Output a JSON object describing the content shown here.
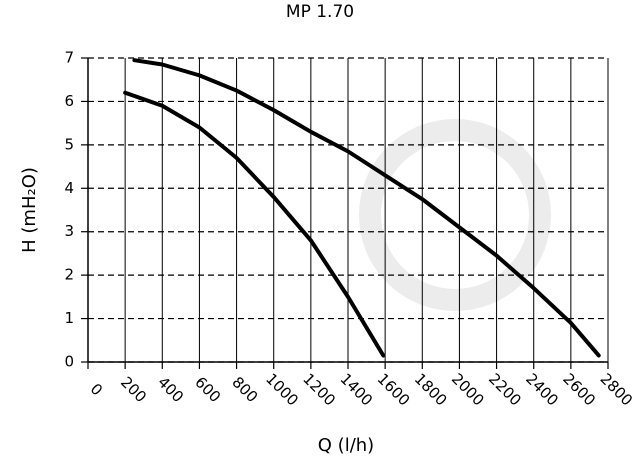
{
  "chart_data": {
    "type": "line",
    "title": "MP 1.70",
    "x_label": "Q (l/h)",
    "y_label": "H (mH₂O)",
    "series": [
      {
        "color": "#000000",
        "x": [
          200,
          400,
          600,
          800,
          1000,
          1200,
          1400,
          1590
        ],
        "values": [
          6.2,
          5.9,
          5.4,
          4.7,
          3.8,
          2.8,
          1.5,
          0.15
        ]
      },
      {
        "color": "#000000",
        "x": [
          250,
          400,
          600,
          800,
          1000,
          1200,
          1400,
          1600,
          1800,
          2000,
          2200,
          2400,
          2600,
          2750
        ],
        "values": [
          6.95,
          6.85,
          6.6,
          6.25,
          5.8,
          5.3,
          4.85,
          4.3,
          3.75,
          3.1,
          2.45,
          1.7,
          0.9,
          0.15
        ]
      }
    ],
    "xlim": [
      0,
      2800
    ],
    "xticks": [
      0,
      200,
      400,
      600,
      800,
      1000,
      1200,
      1400,
      1600,
      1800,
      2000,
      2200,
      2400,
      2600,
      2800
    ],
    "ylim": [
      0,
      7
    ],
    "yticks": [
      0,
      1,
      2,
      3,
      4,
      5,
      6,
      7
    ],
    "grid": true
  }
}
